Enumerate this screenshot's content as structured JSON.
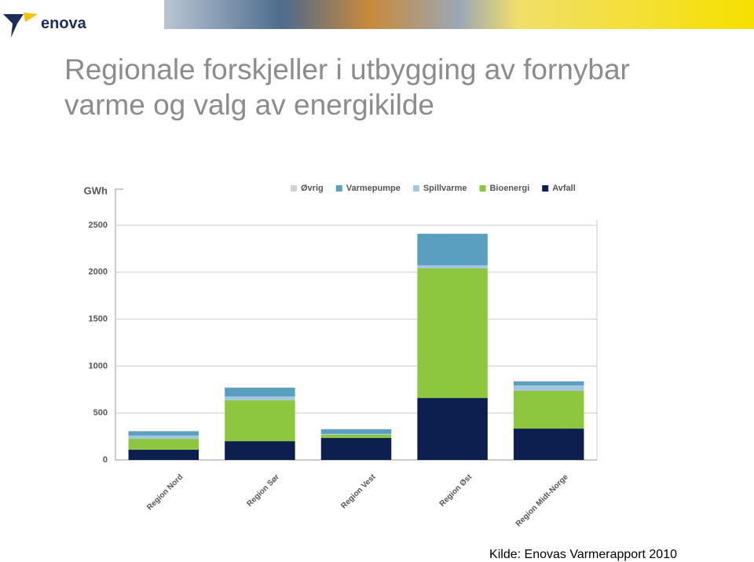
{
  "header": {
    "logo": "enova",
    "title_lines": [
      "Regionale forskjeller i utbygging av fornybar",
      "varme og valg av energikilde"
    ],
    "source": "Kilde: Enovas Varmerapport 2010"
  },
  "chart_data": {
    "type": "stacked_bar",
    "y_label": "GWh",
    "categories": [
      "Region Nord",
      "Region Sør",
      "Region Vest",
      "Region Øst",
      "Region Midt-Norge"
    ],
    "series": [
      {
        "name": "Øvrig",
        "color": "#d3d3d3",
        "values": [
          5,
          5,
          5,
          5,
          5
        ]
      },
      {
        "name": "Varmepumpe",
        "color": "#5a9fc0",
        "values": [
          45,
          92,
          48,
          334,
          42
        ]
      },
      {
        "name": "Spillvarme",
        "color": "#a3c7de",
        "values": [
          35,
          42,
          10,
          34,
          58
        ]
      },
      {
        "name": "Bioenergi",
        "color": "#8dc63f",
        "values": [
          115,
          435,
          34,
          1380,
          402
        ]
      },
      {
        "name": "Avfall",
        "color": "#0c1f4f",
        "values": [
          110,
          200,
          234,
          660,
          334
        ]
      }
    ],
    "ylim": [
      0,
      2500
    ],
    "yticks": [
      0,
      500,
      1000,
      1500,
      2000,
      2500
    ],
    "grid": true,
    "legend": "top-right"
  }
}
